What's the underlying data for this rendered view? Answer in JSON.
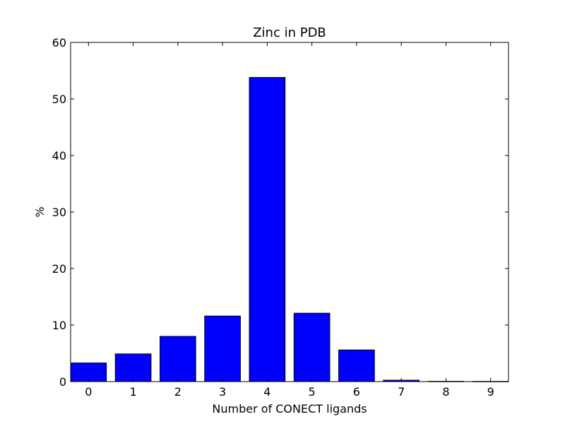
{
  "chart_data": {
    "type": "bar",
    "title": "Zinc in PDB",
    "xlabel": "Number of CONECT ligands",
    "ylabel": "%",
    "categories": [
      "0",
      "1",
      "2",
      "3",
      "4",
      "5",
      "6",
      "7",
      "8",
      "9"
    ],
    "values": [
      3.3,
      4.9,
      8.0,
      11.6,
      53.8,
      12.1,
      5.6,
      0.25,
      0.05,
      0.03
    ],
    "ylim": [
      0,
      60
    ],
    "yticks": [
      0,
      10,
      20,
      30,
      40,
      50,
      60
    ],
    "bar_color": "#0000ff",
    "grid": false,
    "legend": "none"
  }
}
